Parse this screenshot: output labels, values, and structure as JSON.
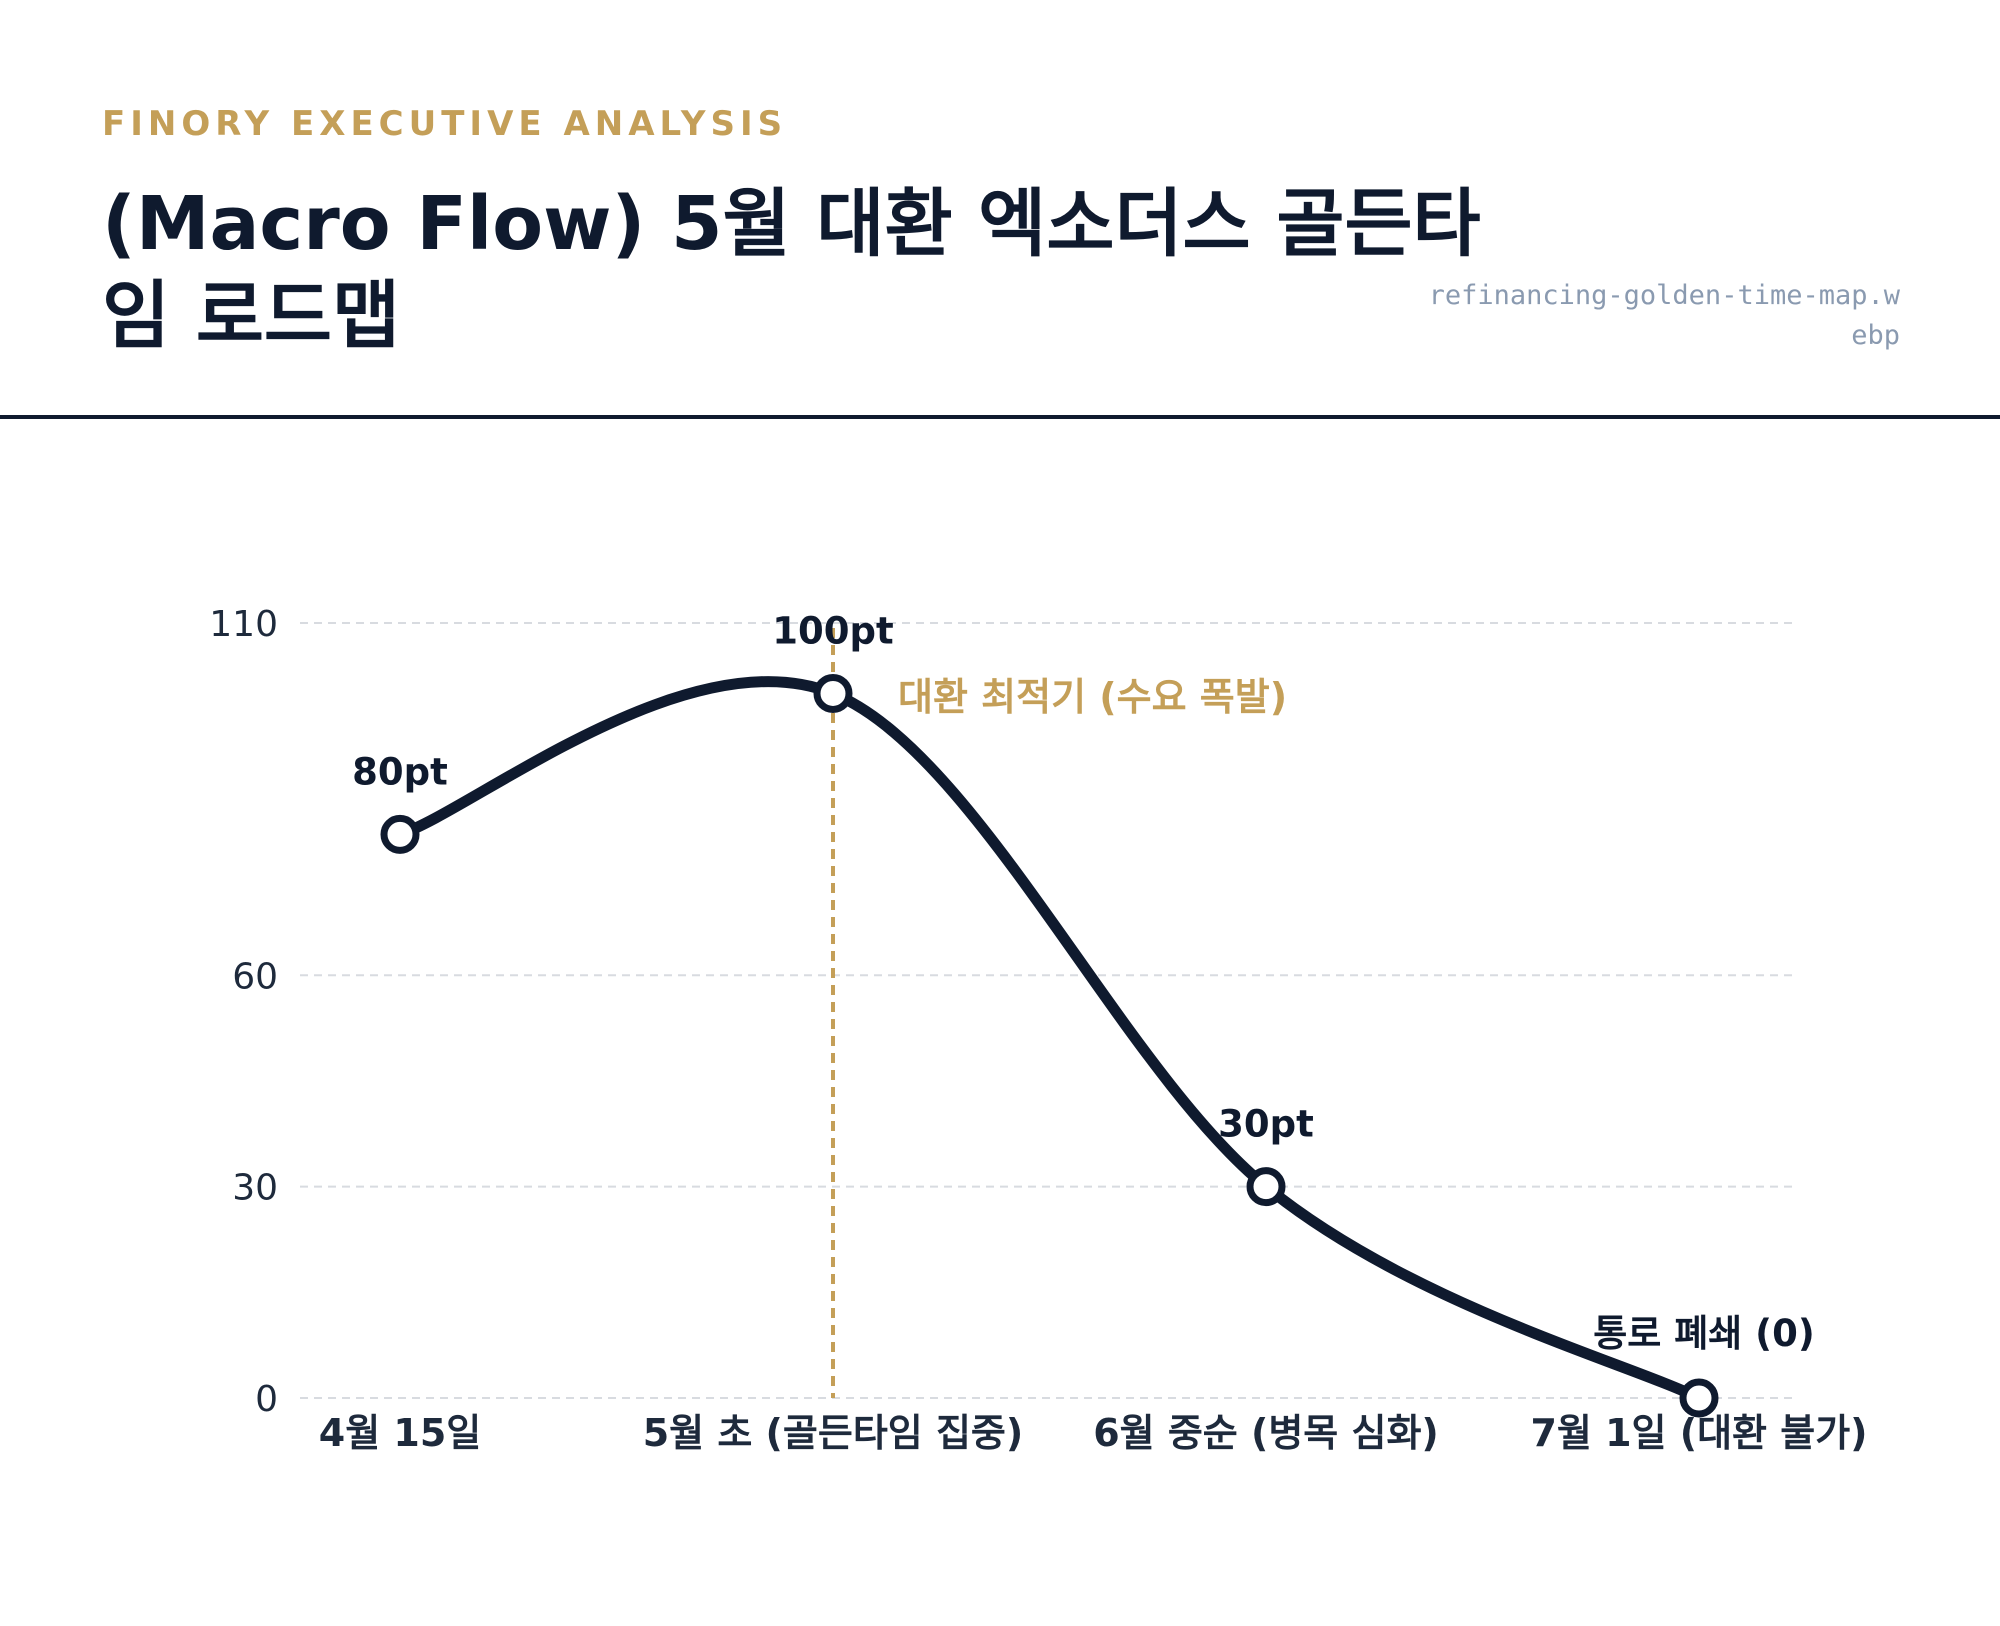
{
  "header": {
    "eyebrow": "FINORY EXECUTIVE ANALYSIS",
    "title": "(Macro Flow) 5월 대환 엑소더스 골든타임 로드맵",
    "filename": "refinancing-golden-time-map.webp"
  },
  "colors": {
    "accent": "#c49f58",
    "line": "#0f1a2e",
    "grid": "#d8dbe0",
    "axis_text": "#1e2a3c",
    "filename": "#8a9ab0"
  },
  "chart_data": {
    "type": "line",
    "categories": [
      "4월 15일",
      "5월 초 (골든타임 집중)",
      "6월 중순 (병목 심화)",
      "7월 1일 (대환 불가)"
    ],
    "values": [
      80,
      100,
      30,
      0
    ],
    "point_labels": [
      "80pt",
      "100pt",
      "30pt",
      "통로 폐쇄 (0)"
    ],
    "ylim": [
      0,
      110
    ],
    "yticks": [
      0,
      30,
      60,
      110
    ],
    "grid": true,
    "highlight": {
      "category_index": 1,
      "annotation": "대환 최적기 (수요 폭발)"
    }
  }
}
